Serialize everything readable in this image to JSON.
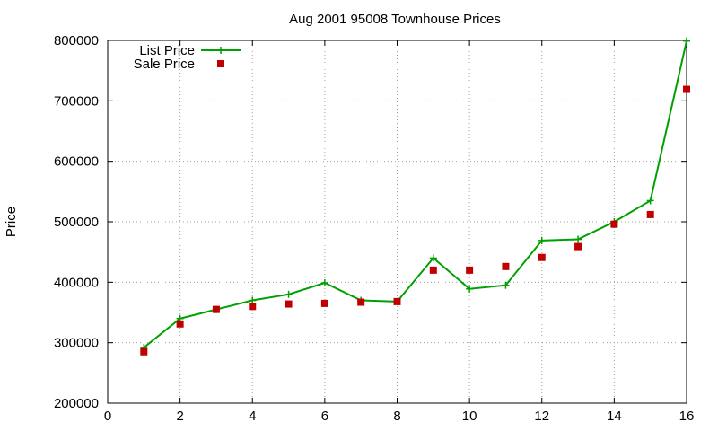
{
  "chart_data": {
    "type": "line",
    "title": "Aug 2001 95008 Townhouse Prices",
    "xlabel": "",
    "ylabel": "Price",
    "xlim": [
      0,
      16
    ],
    "ylim": [
      200000,
      800000
    ],
    "xticks": [
      0,
      2,
      4,
      6,
      8,
      10,
      12,
      14,
      16
    ],
    "yticks": [
      200000,
      300000,
      400000,
      500000,
      600000,
      700000,
      800000
    ],
    "grid": true,
    "legend_position": "top-left",
    "series": [
      {
        "name": "List Price",
        "style": "linespoints",
        "marker": "plus",
        "color": "#00a000",
        "x": [
          1,
          2,
          3,
          4,
          5,
          6,
          7,
          8,
          9,
          10,
          11,
          12,
          13,
          14,
          15,
          16
        ],
        "values": [
          292000,
          340000,
          355000,
          370000,
          380000,
          399000,
          370000,
          368000,
          440000,
          389000,
          395000,
          469000,
          471000,
          500000,
          535000,
          799000
        ]
      },
      {
        "name": "Sale Price",
        "style": "points",
        "marker": "square",
        "color": "#c00000",
        "x": [
          1,
          2,
          3,
          4,
          5,
          6,
          7,
          8,
          9,
          10,
          11,
          12,
          13,
          14,
          15,
          16
        ],
        "values": [
          285000,
          331000,
          355000,
          360000,
          364000,
          365000,
          367000,
          368000,
          420000,
          420000,
          426000,
          441000,
          459000,
          496000,
          512000,
          719000
        ]
      }
    ]
  }
}
